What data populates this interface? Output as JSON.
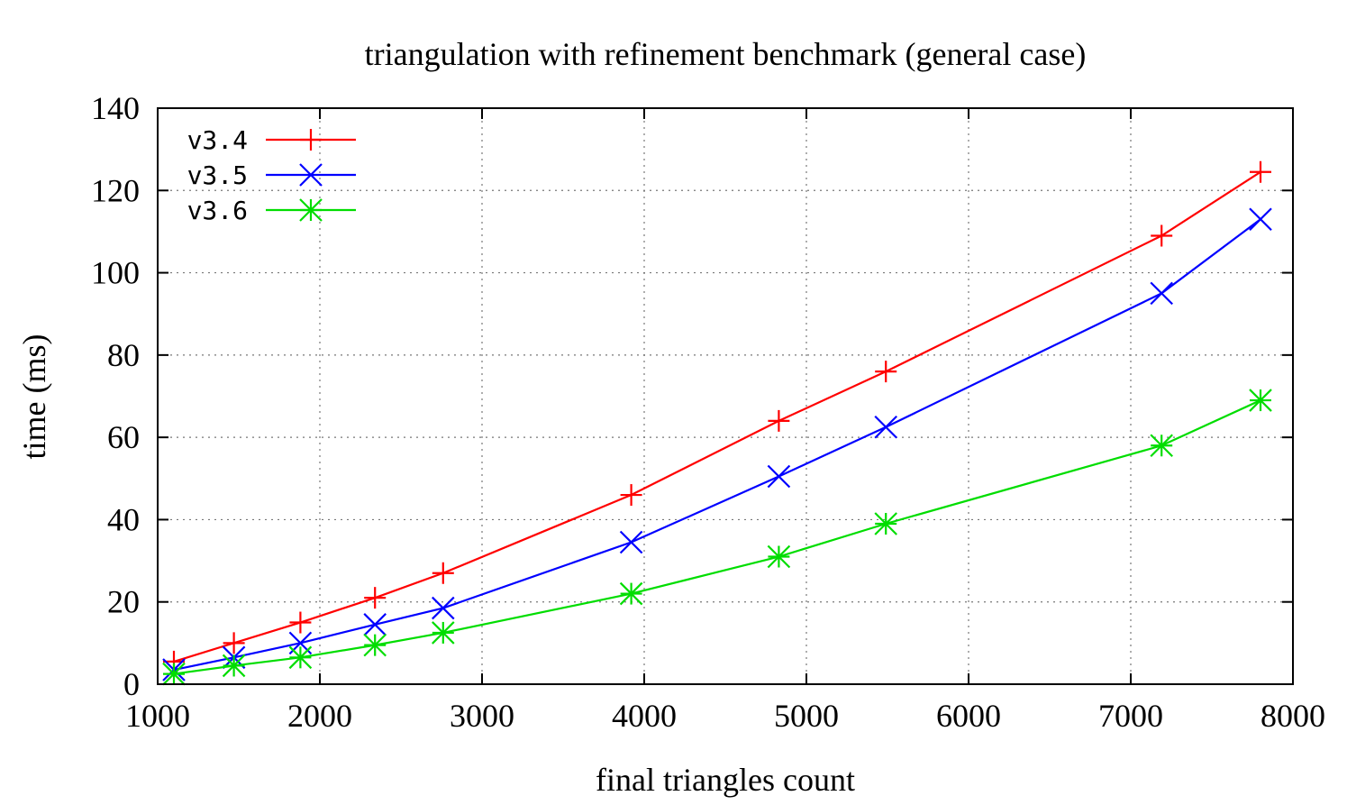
{
  "chart_data": {
    "type": "line",
    "title": "triangulation with refinement benchmark (general case)",
    "xlabel": "final triangles count",
    "ylabel": "time (ms)",
    "xlim": [
      1000,
      8000
    ],
    "ylim": [
      0,
      140
    ],
    "xticks": [
      1000,
      2000,
      3000,
      4000,
      5000,
      6000,
      7000,
      8000
    ],
    "yticks": [
      0,
      20,
      40,
      60,
      80,
      100,
      120,
      140
    ],
    "grid": true,
    "legend_position": "top-left",
    "series": [
      {
        "name": "v3.4",
        "color": "#ff0000",
        "marker": "plus",
        "x": [
          1100,
          1470,
          1880,
          2340,
          2760,
          3920,
          4830,
          5490,
          7190,
          7800
        ],
        "y": [
          5.5,
          10,
          15,
          21,
          27,
          46,
          64,
          76,
          109,
          124.5
        ]
      },
      {
        "name": "v3.5",
        "color": "#0000ff",
        "marker": "cross",
        "x": [
          1100,
          1470,
          1880,
          2340,
          2760,
          3920,
          4830,
          5490,
          7190,
          7800
        ],
        "y": [
          3.5,
          6.5,
          10,
          14.5,
          18.5,
          34.5,
          50.5,
          62.5,
          95,
          113
        ]
      },
      {
        "name": "v3.6",
        "color": "#00dd00",
        "marker": "star",
        "x": [
          1100,
          1470,
          1880,
          2340,
          2760,
          3920,
          4830,
          5490,
          7190,
          7800
        ],
        "y": [
          2.5,
          4.5,
          6.5,
          9.5,
          12.5,
          22,
          31,
          39,
          58,
          69
        ]
      }
    ]
  }
}
